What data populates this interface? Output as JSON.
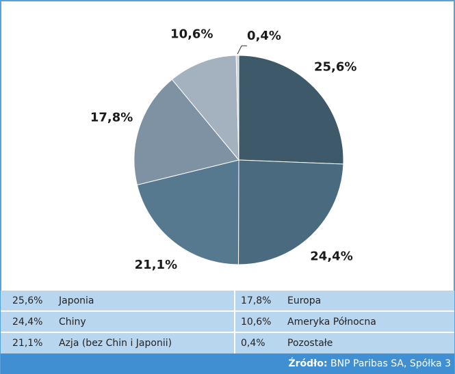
{
  "chart_data": {
    "type": "pie",
    "categories": [
      "Japonia",
      "Chiny",
      "Azja (bez Chin i Japonii)",
      "Europa",
      "Ameryka Północna",
      "Pozostałe"
    ],
    "values": [
      25.6,
      24.4,
      21.1,
      17.8,
      10.6,
      0.4
    ],
    "value_labels": [
      "25,6%",
      "24,4%",
      "21,1%",
      "17,8%",
      "10,6%",
      "0,4%"
    ],
    "colors": [
      "#3e5a6a",
      "#4a6b7f",
      "#56798f",
      "#7e92a4",
      "#a4b1be",
      "#cdd2da"
    ],
    "source_label": "Źródło:",
    "source": "BNP Paribas SA, Spółka 3"
  }
}
